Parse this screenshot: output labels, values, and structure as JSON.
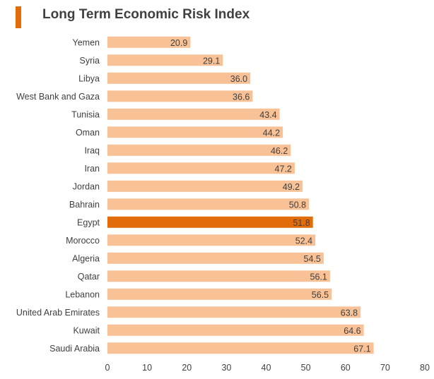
{
  "colors": {
    "bar": "#f9c196",
    "highlight": "#e36c0a",
    "accent": "#e36c0a",
    "text": "#404040"
  },
  "chart_data": {
    "type": "bar",
    "orientation": "horizontal",
    "title": "Long Term Economic Risk Index",
    "categories": [
      "Yemen",
      "Syria",
      "Libya",
      "West Bank and Gaza",
      "Tunisia",
      "Oman",
      "Iraq",
      "Iran",
      "Jordan",
      "Bahrain",
      "Egypt",
      "Morocco",
      "Algeria",
      "Qatar",
      "Lebanon",
      "United Arab Emirates",
      "Kuwait",
      "Saudi Arabia"
    ],
    "values": [
      20.9,
      29.1,
      36.0,
      36.6,
      43.4,
      44.2,
      46.2,
      47.2,
      49.2,
      50.8,
      51.8,
      52.4,
      54.5,
      56.1,
      56.5,
      63.8,
      64.6,
      67.1
    ],
    "value_labels": [
      "20.9",
      "29.1",
      "36.0",
      "36.6",
      "43.4",
      "44.2",
      "46.2",
      "47.2",
      "49.2",
      "50.8",
      "51.8",
      "52.4",
      "54.5",
      "56.1",
      "56.5",
      "63.8",
      "64.6",
      "67.1"
    ],
    "highlight": "Egypt",
    "xlim": [
      0,
      80
    ],
    "xticks": [
      0,
      10,
      20,
      30,
      40,
      50,
      60,
      70,
      80
    ],
    "xlabel": "",
    "ylabel": "",
    "grid": false,
    "legend": "none"
  }
}
